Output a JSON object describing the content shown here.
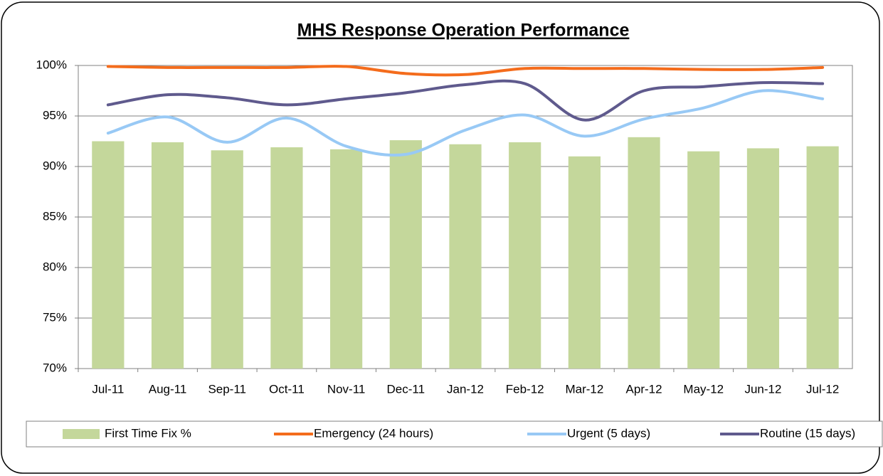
{
  "chart_data": {
    "type": "bar-line",
    "title": "MHS Response Operation Performance",
    "categories": [
      "Jul-11",
      "Aug-11",
      "Sep-11",
      "Oct-11",
      "Nov-11",
      "Dec-11",
      "Jan-12",
      "Feb-12",
      "Mar-12",
      "Apr-12",
      "May-12",
      "Jun-12",
      "Jul-12"
    ],
    "series": [
      {
        "name": "First Time Fix %",
        "type": "bar",
        "color": "#c4d79b",
        "values": [
          92.5,
          92.4,
          91.6,
          91.9,
          91.7,
          92.6,
          92.2,
          92.4,
          91.0,
          92.9,
          91.5,
          91.8,
          92.0
        ]
      },
      {
        "name": "Emergency (24 hours)",
        "type": "line",
        "color": "#f46c1c",
        "values": [
          99.9,
          99.8,
          99.8,
          99.8,
          99.9,
          99.2,
          99.1,
          99.7,
          99.7,
          99.7,
          99.6,
          99.6,
          99.8
        ]
      },
      {
        "name": "Urgent (5 days)",
        "type": "line",
        "color": "#98c9f5",
        "values": [
          93.3,
          94.9,
          92.4,
          94.8,
          92.0,
          91.2,
          93.6,
          95.1,
          93.0,
          94.7,
          95.8,
          97.5,
          96.7
        ]
      },
      {
        "name": "Routine (15 days)",
        "type": "line",
        "color": "#5f5a8d",
        "values": [
          96.1,
          97.1,
          96.8,
          96.1,
          96.7,
          97.3,
          98.1,
          98.2,
          94.6,
          97.5,
          97.9,
          98.3,
          98.2
        ]
      }
    ],
    "ylim": [
      70,
      100
    ],
    "yticks": [
      {
        "value": 70,
        "label": "70%"
      },
      {
        "value": 75,
        "label": "75%"
      },
      {
        "value": 80,
        "label": "80%"
      },
      {
        "value": 85,
        "label": "85%"
      },
      {
        "value": 90,
        "label": "90%"
      },
      {
        "value": 95,
        "label": "95%"
      },
      {
        "value": 100,
        "label": "100%"
      }
    ],
    "grid": true,
    "legend": "bottom"
  }
}
